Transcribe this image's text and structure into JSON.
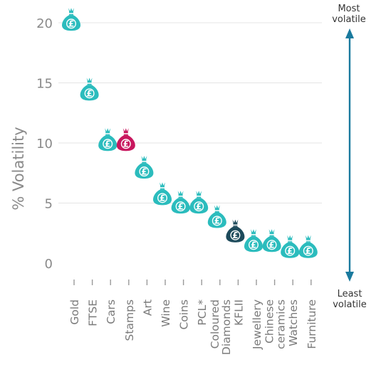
{
  "chart_data": {
    "type": "scatter",
    "title": "",
    "xlabel": "",
    "ylabel": "% Volatility",
    "ylim": [
      0,
      21
    ],
    "yticks": [
      0,
      5,
      10,
      15,
      20
    ],
    "grid": true,
    "marker": "money-bag-icon",
    "marker_symbol": "£",
    "categories": [
      "Gold",
      "FTSE",
      "Cars",
      "Stamps",
      "Art",
      "Wine",
      "Coins",
      "PCL*",
      "Coloured Diamonds",
      "KFLII",
      "Jewellery",
      "Chinese ceramics",
      "Watches",
      "Furniture"
    ],
    "values": [
      20.1,
      14.3,
      10.1,
      10.1,
      7.8,
      5.6,
      4.9,
      4.9,
      3.7,
      2.5,
      1.7,
      1.7,
      1.2,
      1.2
    ],
    "colors": [
      "#2bbcbd",
      "#2bbcbd",
      "#2bbcbd",
      "#c8175e",
      "#2bbcbd",
      "#2bbcbd",
      "#2bbcbd",
      "#2bbcbd",
      "#2bbcbd",
      "#1d4a5b",
      "#2bbcbd",
      "#2bbcbd",
      "#2bbcbd",
      "#2bbcbd"
    ],
    "annotations": {
      "top": [
        "Most",
        "volatile"
      ],
      "bottom": [
        "Least",
        "volatile"
      ],
      "arrow_color": "#1a7a9e"
    }
  }
}
